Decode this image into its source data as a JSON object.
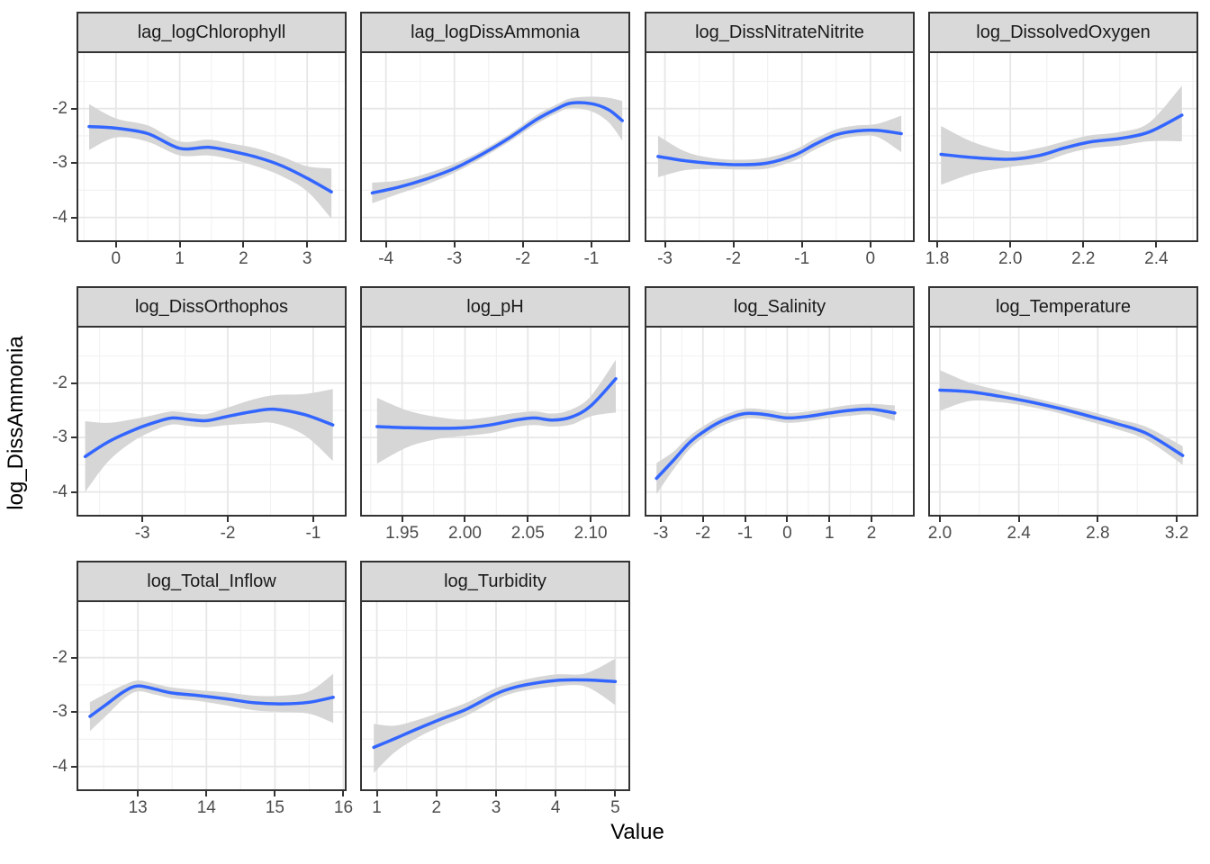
{
  "figure": {
    "background": "#FFFFFF"
  },
  "axes": {
    "x_title": "Value",
    "y_title": "log_DissAmmonia",
    "y_domain": [
      -4.42,
      -0.98
    ],
    "y_ticks": {
      "values": [
        -2,
        -3,
        -4
      ],
      "labels": [
        "-2",
        "-3",
        "-4"
      ]
    },
    "y_minor": [
      -1.5,
      -2.5,
      -3.5
    ]
  },
  "style": {
    "line_color": "#3366FF",
    "ribbon_color": "#D6D6D6",
    "strip_bg": "#D9D9D9",
    "panel_border": "#333333",
    "grid_major": "#E7E7E7",
    "grid_minor": "#F2F2F2",
    "tick_color": "#333333",
    "tick_label_color": "#4D4D4D"
  },
  "chart_data": {
    "type": "line",
    "description": "Smoothed effect curves with gray confidence ribbons, faceted by predictor variable; shared y axis log_DissAmmonia, free x axes",
    "x_variable": "Value",
    "y_variable": "log_DissAmmonia",
    "legend": "none",
    "facets": [
      {
        "title": "lag_logChlorophyll",
        "row": 0,
        "col": 0,
        "x_domain": [
          -0.59,
          3.59
        ],
        "x_ticks": [
          0,
          1,
          2,
          3
        ],
        "x_tick_labels": [
          "0",
          "1",
          "2",
          "3"
        ],
        "x": [
          -0.42,
          0.0,
          0.5,
          1.0,
          1.45,
          1.8,
          2.2,
          2.6,
          3.0,
          3.38
        ],
        "y": [
          -2.33,
          -2.36,
          -2.46,
          -2.73,
          -2.71,
          -2.78,
          -2.89,
          -3.05,
          -3.28,
          -3.53
        ],
        "hi": [
          -1.92,
          -2.18,
          -2.31,
          -2.6,
          -2.57,
          -2.64,
          -2.73,
          -2.88,
          -3.06,
          -3.1
        ],
        "lo": [
          -2.76,
          -2.53,
          -2.61,
          -2.86,
          -2.86,
          -2.93,
          -3.06,
          -3.24,
          -3.52,
          -4.02
        ]
      },
      {
        "title": "lag_logDissAmmonia",
        "row": 0,
        "col": 1,
        "x_domain": [
          -4.35,
          -0.46
        ],
        "x_ticks": [
          -4,
          -3,
          -2,
          -1
        ],
        "x_tick_labels": [
          "-4",
          "-3",
          "-2",
          "-1"
        ],
        "x": [
          -4.2,
          -3.8,
          -3.4,
          -3.0,
          -2.6,
          -2.2,
          -1.8,
          -1.5,
          -1.3,
          -1.0,
          -0.75,
          -0.55
        ],
        "y": [
          -3.55,
          -3.44,
          -3.29,
          -3.1,
          -2.84,
          -2.54,
          -2.2,
          -2.0,
          -1.9,
          -1.91,
          -2.02,
          -2.22
        ],
        "hi": [
          -3.36,
          -3.32,
          -3.19,
          -3.01,
          -2.77,
          -2.47,
          -2.12,
          -1.92,
          -1.81,
          -1.78,
          -1.8,
          -1.86
        ],
        "lo": [
          -3.74,
          -3.56,
          -3.39,
          -3.18,
          -2.91,
          -2.61,
          -2.28,
          -2.08,
          -1.99,
          -2.05,
          -2.25,
          -2.59
        ]
      },
      {
        "title": "log_DissNitrateNitrite",
        "row": 0,
        "col": 2,
        "x_domain": [
          -3.27,
          0.62
        ],
        "x_ticks": [
          -3,
          -2,
          -1,
          0
        ],
        "x_tick_labels": [
          "-3",
          "-2",
          "-1",
          "0"
        ],
        "x": [
          -3.1,
          -2.7,
          -2.3,
          -1.9,
          -1.5,
          -1.1,
          -0.8,
          -0.5,
          -0.2,
          0.1,
          0.45
        ],
        "y": [
          -2.88,
          -2.96,
          -3.01,
          -3.03,
          -3.0,
          -2.85,
          -2.65,
          -2.48,
          -2.41,
          -2.4,
          -2.46
        ],
        "hi": [
          -2.5,
          -2.79,
          -2.91,
          -2.94,
          -2.9,
          -2.75,
          -2.55,
          -2.38,
          -2.31,
          -2.28,
          -2.13
        ],
        "lo": [
          -3.26,
          -3.13,
          -3.11,
          -3.12,
          -3.1,
          -2.95,
          -2.75,
          -2.58,
          -2.51,
          -2.52,
          -2.8
        ]
      },
      {
        "title": "log_DissolvedOxygen",
        "row": 0,
        "col": 3,
        "x_domain": [
          1.78,
          2.51
        ],
        "x_ticks": [
          1.8,
          2.0,
          2.2,
          2.4
        ],
        "x_tick_labels": [
          "1.8",
          "2.0",
          "2.2",
          "2.4"
        ],
        "x": [
          1.81,
          1.9,
          2.0,
          2.08,
          2.15,
          2.22,
          2.3,
          2.38,
          2.47
        ],
        "y": [
          -2.84,
          -2.9,
          -2.93,
          -2.86,
          -2.72,
          -2.61,
          -2.55,
          -2.43,
          -2.12
        ],
        "hi": [
          -2.32,
          -2.62,
          -2.79,
          -2.72,
          -2.6,
          -2.49,
          -2.43,
          -2.26,
          -1.58
        ],
        "lo": [
          -3.4,
          -3.19,
          -3.07,
          -3.0,
          -2.84,
          -2.73,
          -2.68,
          -2.6,
          -2.6
        ]
      },
      {
        "title": "log_DissOrthophos",
        "row": 1,
        "col": 0,
        "x_domain": [
          -3.75,
          -0.63
        ],
        "x_ticks": [
          -3,
          -2,
          -1
        ],
        "x_tick_labels": [
          "-3",
          "-2",
          "-1"
        ],
        "x": [
          -3.67,
          -3.4,
          -3.1,
          -2.85,
          -2.65,
          -2.45,
          -2.25,
          -2.0,
          -1.7,
          -1.45,
          -1.1,
          -0.77
        ],
        "y": [
          -3.35,
          -3.08,
          -2.86,
          -2.72,
          -2.64,
          -2.67,
          -2.69,
          -2.61,
          -2.52,
          -2.48,
          -2.58,
          -2.77
        ],
        "hi": [
          -2.7,
          -2.73,
          -2.66,
          -2.58,
          -2.52,
          -2.55,
          -2.57,
          -2.45,
          -2.3,
          -2.22,
          -2.2,
          -2.11
        ],
        "lo": [
          -4.0,
          -3.44,
          -3.06,
          -2.86,
          -2.76,
          -2.79,
          -2.81,
          -2.77,
          -2.74,
          -2.74,
          -2.96,
          -3.43
        ]
      },
      {
        "title": "log_pH",
        "row": 1,
        "col": 1,
        "x_domain": [
          1.918,
          2.13
        ],
        "x_ticks": [
          1.95,
          2.0,
          2.05,
          2.1
        ],
        "x_tick_labels": [
          "1.95",
          "2.00",
          "2.05",
          "2.10"
        ],
        "x": [
          1.93,
          1.955,
          1.98,
          2.0,
          2.02,
          2.04,
          2.055,
          2.07,
          2.085,
          2.1,
          2.12
        ],
        "y": [
          -2.8,
          -2.82,
          -2.83,
          -2.82,
          -2.77,
          -2.68,
          -2.64,
          -2.68,
          -2.62,
          -2.42,
          -1.92
        ],
        "hi": [
          -2.27,
          -2.51,
          -2.63,
          -2.67,
          -2.62,
          -2.55,
          -2.52,
          -2.56,
          -2.48,
          -2.24,
          -1.57
        ],
        "lo": [
          -3.48,
          -3.17,
          -3.02,
          -2.97,
          -2.92,
          -2.81,
          -2.77,
          -2.8,
          -2.76,
          -2.61,
          -2.54
        ]
      },
      {
        "title": "log_Salinity",
        "row": 1,
        "col": 2,
        "x_domain": [
          -3.34,
          2.98
        ],
        "x_ticks": [
          -3,
          -2,
          -1,
          0,
          1,
          2
        ],
        "x_tick_labels": [
          "-3",
          "-2",
          "-1",
          "0",
          "1",
          "2"
        ],
        "x": [
          -3.1,
          -2.7,
          -2.3,
          -1.9,
          -1.5,
          -1.0,
          -0.5,
          0.0,
          0.5,
          1.0,
          1.5,
          2.0,
          2.55
        ],
        "y": [
          -3.75,
          -3.42,
          -3.08,
          -2.85,
          -2.68,
          -2.56,
          -2.58,
          -2.64,
          -2.61,
          -2.55,
          -2.5,
          -2.48,
          -2.55
        ],
        "hi": [
          -3.47,
          -3.26,
          -2.96,
          -2.75,
          -2.59,
          -2.47,
          -2.49,
          -2.55,
          -2.52,
          -2.46,
          -2.4,
          -2.38,
          -2.41
        ],
        "lo": [
          -4.04,
          -3.59,
          -3.2,
          -2.95,
          -2.77,
          -2.65,
          -2.67,
          -2.73,
          -2.7,
          -2.64,
          -2.6,
          -2.58,
          -2.69
        ]
      },
      {
        "title": "log_Temperature",
        "row": 1,
        "col": 3,
        "x_domain": [
          1.95,
          3.3
        ],
        "x_ticks": [
          2.0,
          2.4,
          2.8,
          3.2
        ],
        "x_tick_labels": [
          "2.0",
          "2.4",
          "2.8",
          "3.2"
        ],
        "x": [
          2.0,
          2.15,
          2.3,
          2.45,
          2.6,
          2.75,
          2.9,
          3.05,
          3.23
        ],
        "y": [
          -2.13,
          -2.16,
          -2.24,
          -2.34,
          -2.46,
          -2.6,
          -2.75,
          -2.93,
          -3.33
        ],
        "hi": [
          -1.76,
          -1.99,
          -2.13,
          -2.25,
          -2.38,
          -2.51,
          -2.66,
          -2.81,
          -3.16
        ],
        "lo": [
          -2.51,
          -2.33,
          -2.35,
          -2.43,
          -2.55,
          -2.7,
          -2.85,
          -3.05,
          -3.5
        ]
      },
      {
        "title": "log_Total_Inflow",
        "row": 2,
        "col": 0,
        "x_domain": [
          12.13,
          16.02
        ],
        "x_ticks": [
          13,
          14,
          15,
          16
        ],
        "x_tick_labels": [
          "13",
          "14",
          "15",
          "16"
        ],
        "x": [
          12.3,
          12.55,
          12.8,
          13.0,
          13.25,
          13.5,
          13.9,
          14.3,
          14.7,
          15.1,
          15.5,
          15.85
        ],
        "y": [
          -3.08,
          -2.85,
          -2.62,
          -2.52,
          -2.58,
          -2.65,
          -2.7,
          -2.76,
          -2.83,
          -2.85,
          -2.82,
          -2.73
        ],
        "hi": [
          -2.82,
          -2.65,
          -2.5,
          -2.42,
          -2.48,
          -2.55,
          -2.6,
          -2.64,
          -2.7,
          -2.7,
          -2.62,
          -2.3
        ],
        "lo": [
          -3.35,
          -3.05,
          -2.75,
          -2.62,
          -2.68,
          -2.75,
          -2.8,
          -2.88,
          -2.97,
          -3.0,
          -3.03,
          -3.2
        ]
      },
      {
        "title": "log_Turbidity",
        "row": 2,
        "col": 1,
        "x_domain": [
          0.75,
          5.22
        ],
        "x_ticks": [
          1,
          2,
          3,
          4,
          5
        ],
        "x_tick_labels": [
          "1",
          "2",
          "3",
          "4",
          "5"
        ],
        "x": [
          0.95,
          1.3,
          1.7,
          2.1,
          2.5,
          2.9,
          3.15,
          3.5,
          4.0,
          4.5,
          5.0
        ],
        "y": [
          -3.65,
          -3.49,
          -3.3,
          -3.12,
          -2.95,
          -2.72,
          -2.6,
          -2.5,
          -2.42,
          -2.41,
          -2.44
        ],
        "hi": [
          -3.22,
          -3.25,
          -3.14,
          -2.99,
          -2.83,
          -2.61,
          -2.5,
          -2.4,
          -2.31,
          -2.29,
          -2.02
        ],
        "lo": [
          -4.12,
          -3.74,
          -3.46,
          -3.25,
          -3.07,
          -2.83,
          -2.7,
          -2.6,
          -2.53,
          -2.53,
          -2.87
        ]
      }
    ]
  }
}
